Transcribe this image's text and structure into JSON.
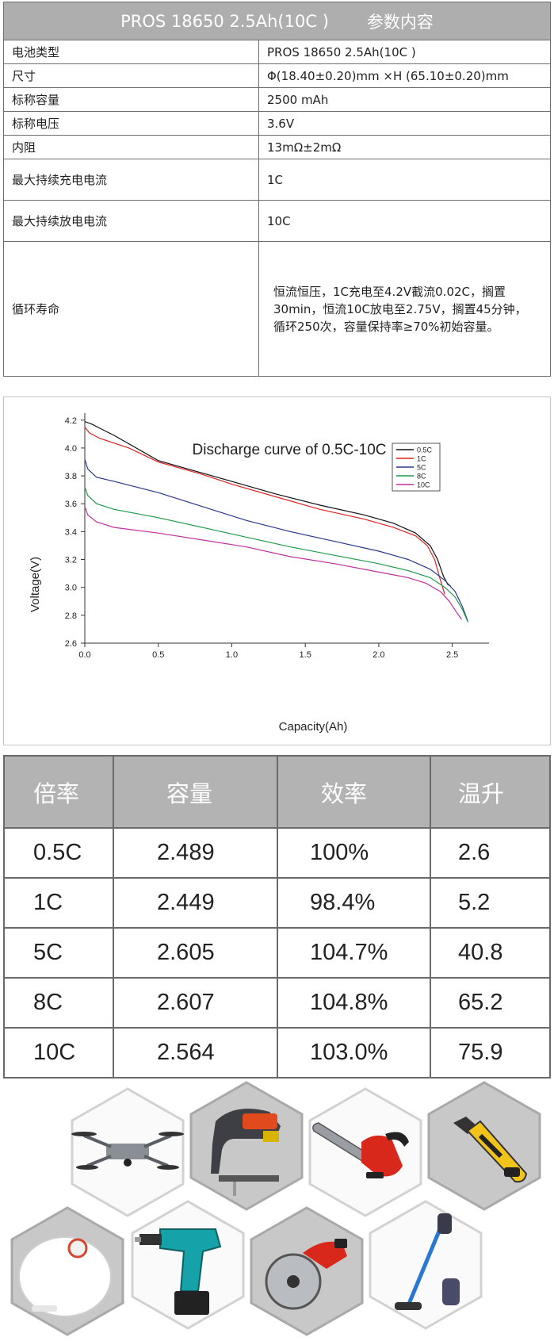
{
  "spec": {
    "header_left": "PROS 18650 2.5Ah(10C )",
    "header_right": "参数内容",
    "rows": [
      {
        "label": "电池类型",
        "value": "PROS 18650 2.5Ah(10C )"
      },
      {
        "label": "尺寸",
        "value": "Φ(18.40±0.20)mm ×H (65.10±0.20)mm"
      },
      {
        "label": "标称容量",
        "value": "2500 mAh"
      },
      {
        "label": "标称电压",
        "value": "3.6V"
      },
      {
        "label": "内阻",
        "value": "13mΩ±2mΩ"
      },
      {
        "label": "最大持续充电电流",
        "value": "1C"
      },
      {
        "label": "最大持续放电电流",
        "value": "10C"
      },
      {
        "label": "循环寿命",
        "value_lines": [
          "恒流恒压，1C充电至4.2V截流0.02C，搁置",
          "30min，恒流10C放电至2.75V，搁置45分钟，",
          "循环250次，容量保持率≥70%初始容量。"
        ]
      }
    ]
  },
  "chart_data": {
    "type": "line",
    "title": "Discharge curve of 0.5C-10C",
    "xlabel": "Capacity(Ah)",
    "ylabel": "Voltage(V)",
    "xlim": [
      0.0,
      2.75
    ],
    "ylim": [
      2.6,
      4.2
    ],
    "xticks": [
      "0.0",
      "0.5",
      "1.0",
      "1.5",
      "2.0",
      "2.5"
    ],
    "yticks": [
      "2.6",
      "2.8",
      "3.0",
      "3.2",
      "3.4",
      "3.6",
      "3.8",
      "4.0",
      "4.2"
    ],
    "legend_position": "top-right",
    "series": [
      {
        "name": "0.5C",
        "color": "#111111",
        "x": [
          0.0,
          0.05,
          0.2,
          0.5,
          0.8,
          1.0,
          1.3,
          1.6,
          1.9,
          2.1,
          2.25,
          2.35,
          2.4,
          2.44,
          2.47,
          2.489
        ],
        "y": [
          4.19,
          4.17,
          4.09,
          3.91,
          3.82,
          3.76,
          3.67,
          3.59,
          3.52,
          3.46,
          3.39,
          3.3,
          3.2,
          3.08,
          3.02,
          3.01
        ]
      },
      {
        "name": "1C",
        "color": "#dd2222",
        "x": [
          0.0,
          0.03,
          0.1,
          0.3,
          0.5,
          0.8,
          1.0,
          1.3,
          1.6,
          1.9,
          2.1,
          2.25,
          2.33,
          2.38,
          2.42,
          2.449
        ],
        "y": [
          4.15,
          4.11,
          4.07,
          4.0,
          3.9,
          3.81,
          3.74,
          3.65,
          3.56,
          3.49,
          3.43,
          3.37,
          3.3,
          3.2,
          3.05,
          2.95
        ]
      },
      {
        "name": "5C",
        "color": "#2a3a8a",
        "x": [
          0.0,
          0.02,
          0.08,
          0.2,
          0.5,
          0.8,
          1.1,
          1.4,
          1.7,
          2.0,
          2.2,
          2.35,
          2.45,
          2.52,
          2.57,
          2.605
        ],
        "y": [
          3.92,
          3.85,
          3.79,
          3.76,
          3.68,
          3.58,
          3.48,
          3.4,
          3.33,
          3.26,
          3.2,
          3.13,
          3.05,
          2.97,
          2.86,
          2.76
        ]
      },
      {
        "name": "8C",
        "color": "#1f9a4a",
        "x": [
          0.0,
          0.02,
          0.08,
          0.2,
          0.5,
          0.8,
          1.1,
          1.4,
          1.7,
          2.0,
          2.2,
          2.35,
          2.45,
          2.52,
          2.57,
          2.607
        ],
        "y": [
          3.72,
          3.66,
          3.6,
          3.56,
          3.5,
          3.43,
          3.36,
          3.29,
          3.23,
          3.17,
          3.12,
          3.07,
          3.0,
          2.93,
          2.84,
          2.75
        ]
      },
      {
        "name": "10C",
        "color": "#c0309a",
        "x": [
          0.0,
          0.02,
          0.08,
          0.2,
          0.5,
          0.8,
          1.1,
          1.4,
          1.7,
          2.0,
          2.2,
          2.32,
          2.42,
          2.48,
          2.53,
          2.564
        ],
        "y": [
          3.58,
          3.52,
          3.47,
          3.43,
          3.39,
          3.34,
          3.29,
          3.22,
          3.17,
          3.11,
          3.07,
          3.03,
          2.97,
          2.9,
          2.82,
          2.77
        ]
      }
    ]
  },
  "rates": {
    "headers": [
      "倍率",
      "容量",
      "效率",
      "温升"
    ],
    "rows": [
      [
        "0.5C",
        "2.489",
        "100%",
        "2.6"
      ],
      [
        "1C",
        "2.449",
        "98.4%",
        "5.2"
      ],
      [
        "5C",
        "2.605",
        "104.7%",
        "40.8"
      ],
      [
        "8C",
        "2.607",
        "104.8%",
        "65.2"
      ],
      [
        "10C",
        "2.564",
        "103.0%",
        "75.9"
      ]
    ]
  },
  "applications": [
    {
      "name": "drone-icon"
    },
    {
      "name": "jigsaw-icon"
    },
    {
      "name": "chainsaw-icon"
    },
    {
      "name": "electric-shears-icon"
    },
    {
      "name": "robot-vacuum-icon"
    },
    {
      "name": "cordless-drill-icon"
    },
    {
      "name": "circular-saw-icon"
    },
    {
      "name": "stick-vacuum-icon"
    }
  ]
}
